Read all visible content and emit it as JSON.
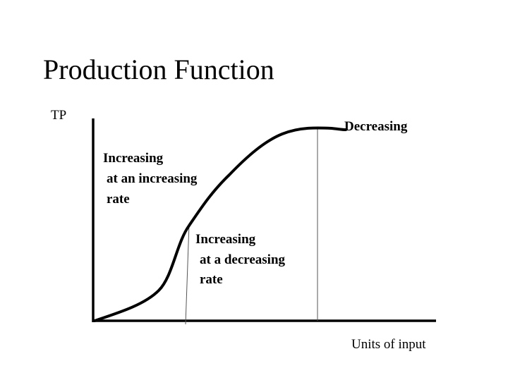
{
  "title": "Production Function",
  "y_axis_label": "TP",
  "x_axis_label": "Units of input",
  "regions": {
    "stage1": [
      "Increasing",
      "at an increasing",
      "rate"
    ],
    "stage2": [
      "Increasing",
      "at a decreasing",
      "rate"
    ],
    "stage3": "Decreasing"
  },
  "colors": {
    "line": "#000000",
    "background": "#ffffff"
  }
}
